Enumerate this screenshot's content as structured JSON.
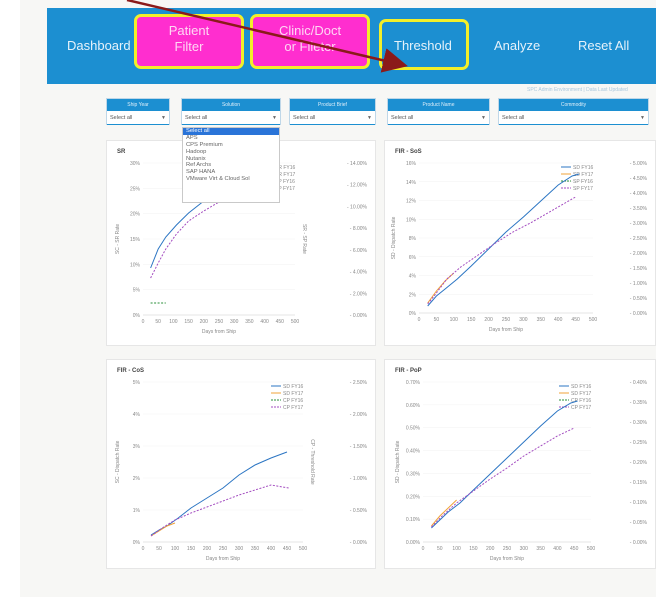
{
  "nav": {
    "items": [
      "Dashboard",
      "Threshold",
      "Analyze",
      "Reset All"
    ],
    "overlay_buttons": [
      "Patient\nFilter",
      "Clinic/Doct\nor Fileter"
    ]
  },
  "filters": [
    {
      "label": "Ship Year",
      "value": "Select all"
    },
    {
      "label": "Solution",
      "value": "Select all"
    },
    {
      "label": "Product Brief",
      "value": "Select all"
    },
    {
      "label": "Product Name",
      "value": "Select all"
    },
    {
      "label": "Commodity",
      "value": "Select all"
    }
  ],
  "solution_dropdown": {
    "options": [
      "Select all",
      "APS",
      "CPS Premium",
      "Hadoop",
      "Nutanix",
      "Ref Archs",
      "SAP HANA",
      "VMware Virt & Cloud Sol"
    ],
    "selected": "Select all"
  },
  "colors": {
    "nav_bg": "#1c8fd1",
    "overlay_fill": "#ff2ecf",
    "overlay_border": "#f2ef2a",
    "arrow": "#8b1a1a",
    "series_blue": "#2b75c3",
    "series_orange": "#f0a33a",
    "series_green": "#2a8f3a",
    "series_purple": "#a34cc0"
  },
  "panels": [
    {
      "title": "SR",
      "legend": [
        "SR FY16",
        "SR FY17",
        "SP FY16",
        "SP FY17"
      ],
      "xlabel": "Days from Ship",
      "ylabel": "SC - SR Rate",
      "y2label": "SR - SP Rate",
      "yticks": [
        "0%",
        "5%",
        "10%",
        "15%",
        "20%",
        "25%",
        "30%"
      ],
      "y2ticks": [
        "0.00%",
        "2.00%",
        "4.00%",
        "6.00%",
        "8.00%",
        "10.00%",
        "12.00%",
        "14.00%"
      ],
      "xticks": [
        "0",
        "50",
        "100",
        "150",
        "200",
        "250",
        "300",
        "350",
        "400",
        "450",
        "500"
      ]
    },
    {
      "title": "FIR - SoS",
      "legend": [
        "SD FY16",
        "SD FY17",
        "SP FY16",
        "SP FY17"
      ],
      "xlabel": "Days from Ship",
      "ylabel": "SD - Dispatch Rate",
      "y2label": "",
      "yticks": [
        "0%",
        "2%",
        "4%",
        "6%",
        "8%",
        "10%",
        "12%",
        "14%",
        "16%"
      ],
      "y2ticks": [
        "0.00%",
        "0.50%",
        "1.00%",
        "1.50%",
        "2.00%",
        "2.50%",
        "3.00%",
        "3.50%",
        "4.00%",
        "4.50%",
        "5.00%"
      ],
      "xticks": [
        "0",
        "50",
        "100",
        "150",
        "200",
        "250",
        "300",
        "350",
        "400",
        "450",
        "500"
      ]
    },
    {
      "title": "FIR - CoS",
      "legend": [
        "SD FY16",
        "SD FY17",
        "CP FY16",
        "CP FY17"
      ],
      "xlabel": "Days from Ship",
      "ylabel": "SC - Dispatch Rate",
      "y2label": "CP - Threshold Rate",
      "yticks": [
        "0%",
        "1%",
        "2%",
        "3%",
        "4%",
        "5%"
      ],
      "y2ticks": [
        "0.00%",
        "0.50%",
        "1.00%",
        "1.50%",
        "2.00%",
        "2.50%"
      ],
      "xticks": [
        "0",
        "50",
        "100",
        "150",
        "200",
        "250",
        "300",
        "350",
        "400",
        "450",
        "500"
      ]
    },
    {
      "title": "FIR - PoP",
      "legend": [
        "SD FY16",
        "SD FY17",
        "CP FY16",
        "CP FY17"
      ],
      "xlabel": "Days from Ship",
      "ylabel": "SD - Dispatch Rate",
      "y2label": "",
      "yticks": [
        "0.00%",
        "0.10%",
        "0.20%",
        "0.30%",
        "0.40%",
        "0.50%",
        "0.60%",
        "0.70%"
      ],
      "y2ticks": [
        "0.00%",
        "0.05%",
        "0.10%",
        "0.15%",
        "0.20%",
        "0.25%",
        "0.30%",
        "0.35%",
        "0.40%"
      ],
      "xticks": [
        "0",
        "50",
        "100",
        "150",
        "200",
        "250",
        "300",
        "350",
        "400",
        "450",
        "500"
      ]
    }
  ],
  "status_text": "SPC Admin Environment | Data Last Updated"
}
